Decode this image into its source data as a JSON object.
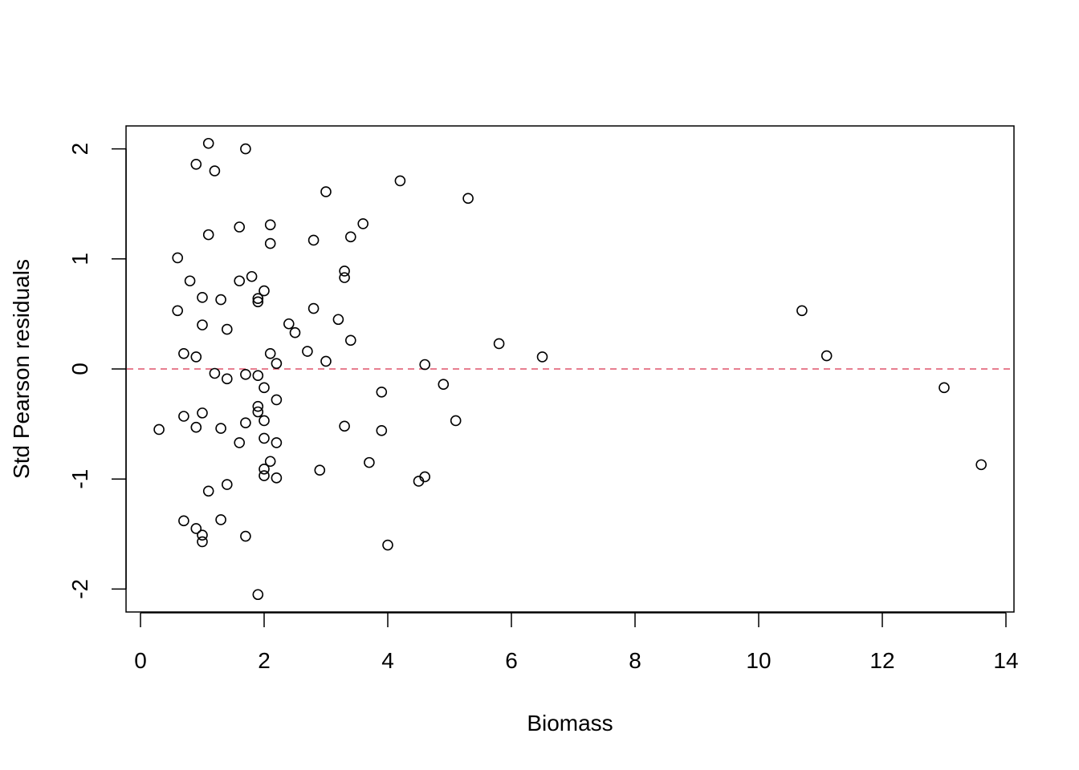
{
  "chart_data": {
    "type": "scatter",
    "title": "",
    "xlabel": "Biomass",
    "ylabel": "Std Pearson residuals",
    "xlim": [
      0,
      14
    ],
    "ylim": [
      -2,
      2
    ],
    "x_ticks": [
      "0",
      "2",
      "4",
      "6",
      "8",
      "10",
      "12",
      "14"
    ],
    "y_ticks": [
      "-2",
      "-1",
      "0",
      "1",
      "2"
    ],
    "grid": false,
    "reference_line": {
      "y": 0,
      "style": "dashed",
      "color": "#DF536B"
    },
    "point_style": "open-circle",
    "points": [
      {
        "x": 1.1,
        "y": 2.05
      },
      {
        "x": 1.7,
        "y": 2.0
      },
      {
        "x": 0.9,
        "y": 1.86
      },
      {
        "x": 1.2,
        "y": 1.8
      },
      {
        "x": 4.2,
        "y": 1.71
      },
      {
        "x": 3.0,
        "y": 1.61
      },
      {
        "x": 5.3,
        "y": 1.55
      },
      {
        "x": 3.6,
        "y": 1.32
      },
      {
        "x": 2.1,
        "y": 1.31
      },
      {
        "x": 1.6,
        "y": 1.29
      },
      {
        "x": 1.1,
        "y": 1.22
      },
      {
        "x": 3.4,
        "y": 1.2
      },
      {
        "x": 2.8,
        "y": 1.17
      },
      {
        "x": 2.1,
        "y": 1.14
      },
      {
        "x": 0.6,
        "y": 1.01
      },
      {
        "x": 3.3,
        "y": 0.89
      },
      {
        "x": 1.8,
        "y": 0.84
      },
      {
        "x": 3.3,
        "y": 0.83
      },
      {
        "x": 0.8,
        "y": 0.8
      },
      {
        "x": 1.6,
        "y": 0.8
      },
      {
        "x": 2.0,
        "y": 0.71
      },
      {
        "x": 1.0,
        "y": 0.65
      },
      {
        "x": 1.9,
        "y": 0.64
      },
      {
        "x": 1.3,
        "y": 0.63
      },
      {
        "x": 1.9,
        "y": 0.61
      },
      {
        "x": 2.8,
        "y": 0.55
      },
      {
        "x": 0.6,
        "y": 0.53
      },
      {
        "x": 10.7,
        "y": 0.53
      },
      {
        "x": 3.2,
        "y": 0.45
      },
      {
        "x": 2.4,
        "y": 0.41
      },
      {
        "x": 1.0,
        "y": 0.4
      },
      {
        "x": 1.4,
        "y": 0.36
      },
      {
        "x": 2.5,
        "y": 0.33
      },
      {
        "x": 3.4,
        "y": 0.26
      },
      {
        "x": 5.8,
        "y": 0.23
      },
      {
        "x": 2.7,
        "y": 0.16
      },
      {
        "x": 0.7,
        "y": 0.14
      },
      {
        "x": 2.1,
        "y": 0.14
      },
      {
        "x": 11.1,
        "y": 0.12
      },
      {
        "x": 0.9,
        "y": 0.11
      },
      {
        "x": 6.5,
        "y": 0.11
      },
      {
        "x": 3.0,
        "y": 0.07
      },
      {
        "x": 2.2,
        "y": 0.05
      },
      {
        "x": 4.6,
        "y": 0.04
      },
      {
        "x": 1.2,
        "y": -0.04
      },
      {
        "x": 1.7,
        "y": -0.05
      },
      {
        "x": 1.9,
        "y": -0.06
      },
      {
        "x": 1.4,
        "y": -0.09
      },
      {
        "x": 4.9,
        "y": -0.14
      },
      {
        "x": 13.0,
        "y": -0.17
      },
      {
        "x": 2.0,
        "y": -0.17
      },
      {
        "x": 3.9,
        "y": -0.21
      },
      {
        "x": 2.2,
        "y": -0.28
      },
      {
        "x": 1.9,
        "y": -0.34
      },
      {
        "x": 1.9,
        "y": -0.39
      },
      {
        "x": 1.0,
        "y": -0.4
      },
      {
        "x": 0.7,
        "y": -0.43
      },
      {
        "x": 2.0,
        "y": -0.47
      },
      {
        "x": 5.1,
        "y": -0.47
      },
      {
        "x": 1.7,
        "y": -0.49
      },
      {
        "x": 3.3,
        "y": -0.52
      },
      {
        "x": 0.9,
        "y": -0.53
      },
      {
        "x": 1.3,
        "y": -0.54
      },
      {
        "x": 0.3,
        "y": -0.55
      },
      {
        "x": 3.9,
        "y": -0.56
      },
      {
        "x": 2.0,
        "y": -0.63
      },
      {
        "x": 2.2,
        "y": -0.67
      },
      {
        "x": 1.6,
        "y": -0.67
      },
      {
        "x": 2.1,
        "y": -0.84
      },
      {
        "x": 3.7,
        "y": -0.85
      },
      {
        "x": 13.6,
        "y": -0.87
      },
      {
        "x": 2.0,
        "y": -0.91
      },
      {
        "x": 2.9,
        "y": -0.92
      },
      {
        "x": 2.0,
        "y": -0.97
      },
      {
        "x": 4.6,
        "y": -0.98
      },
      {
        "x": 2.2,
        "y": -0.99
      },
      {
        "x": 4.5,
        "y": -1.02
      },
      {
        "x": 1.4,
        "y": -1.05
      },
      {
        "x": 1.1,
        "y": -1.11
      },
      {
        "x": 1.3,
        "y": -1.37
      },
      {
        "x": 0.7,
        "y": -1.38
      },
      {
        "x": 0.9,
        "y": -1.45
      },
      {
        "x": 1.0,
        "y": -1.51
      },
      {
        "x": 1.7,
        "y": -1.52
      },
      {
        "x": 1.0,
        "y": -1.57
      },
      {
        "x": 4.0,
        "y": -1.6
      },
      {
        "x": 1.9,
        "y": -2.05
      }
    ]
  }
}
